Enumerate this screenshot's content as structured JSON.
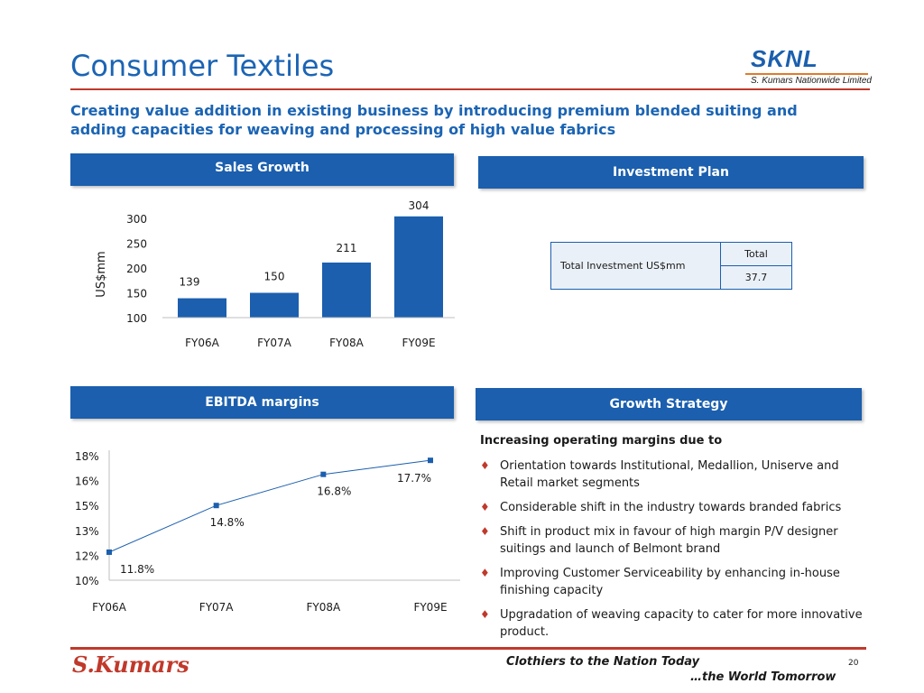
{
  "header": {
    "title": "Consumer Textiles",
    "logo": "SKNL",
    "logo_subtitle": "S. Kumars Nationwide Limited",
    "subtitle": "Creating value addition in existing business by introducing premium blended suiting and adding capacities for weaving and processing of high value fabrics"
  },
  "sections": {
    "sales": "Sales Growth",
    "investment": "Investment Plan",
    "ebitda": "EBITDA margins",
    "growth": "Growth Strategy"
  },
  "chart_data": [
    {
      "type": "bar",
      "categories": [
        "FY06A",
        "FY07A",
        "FY08A",
        "FY09E"
      ],
      "values": [
        139,
        150,
        211,
        304
      ],
      "data_labels": [
        "139",
        "150",
        "211",
        "304"
      ],
      "ylabel": "US$mm",
      "ylim": [
        100,
        300
      ],
      "yticks": [
        "100",
        "150",
        "200",
        "250",
        "300"
      ],
      "grid": false,
      "color": "#1b5fae"
    },
    {
      "type": "line",
      "categories": [
        "FY06A",
        "FY07A",
        "FY08A",
        "FY09E"
      ],
      "values": [
        11.8,
        14.8,
        16.8,
        17.7
      ],
      "data_labels": [
        "11.8%",
        "14.8%",
        "16.8%",
        "17.7%"
      ],
      "ylim": [
        10,
        18
      ],
      "yticks": [
        "10%",
        "12%",
        "13%",
        "15%",
        "16%",
        "18%"
      ],
      "grid": false,
      "color": "#1b5fae"
    }
  ],
  "investment_table": {
    "row_label": "Total Investment US$mm",
    "col_header": "Total",
    "value": "37.7"
  },
  "growth_strategy": {
    "lead": "Increasing operating margins due to",
    "items": [
      "Orientation towards  Institutional, Medallion, Uniserve and Retail market segments",
      "Considerable shift in the industry towards branded fabrics",
      "Shift in product mix in favour of high margin P/V designer suitings and launch of Belmont brand",
      "Improving Customer Serviceability by enhancing in-house finishing capacity",
      "Upgradation of weaving capacity to cater for more innovative product."
    ]
  },
  "footer": {
    "logo": "S.Kumars",
    "tagline_1": "Clothiers to the Nation Today",
    "tagline_2": "…the World Tomorrow",
    "page": "20"
  },
  "colors": {
    "accent": "#1b5fae",
    "rule": "#c0392b",
    "title": "#1b64b4"
  }
}
